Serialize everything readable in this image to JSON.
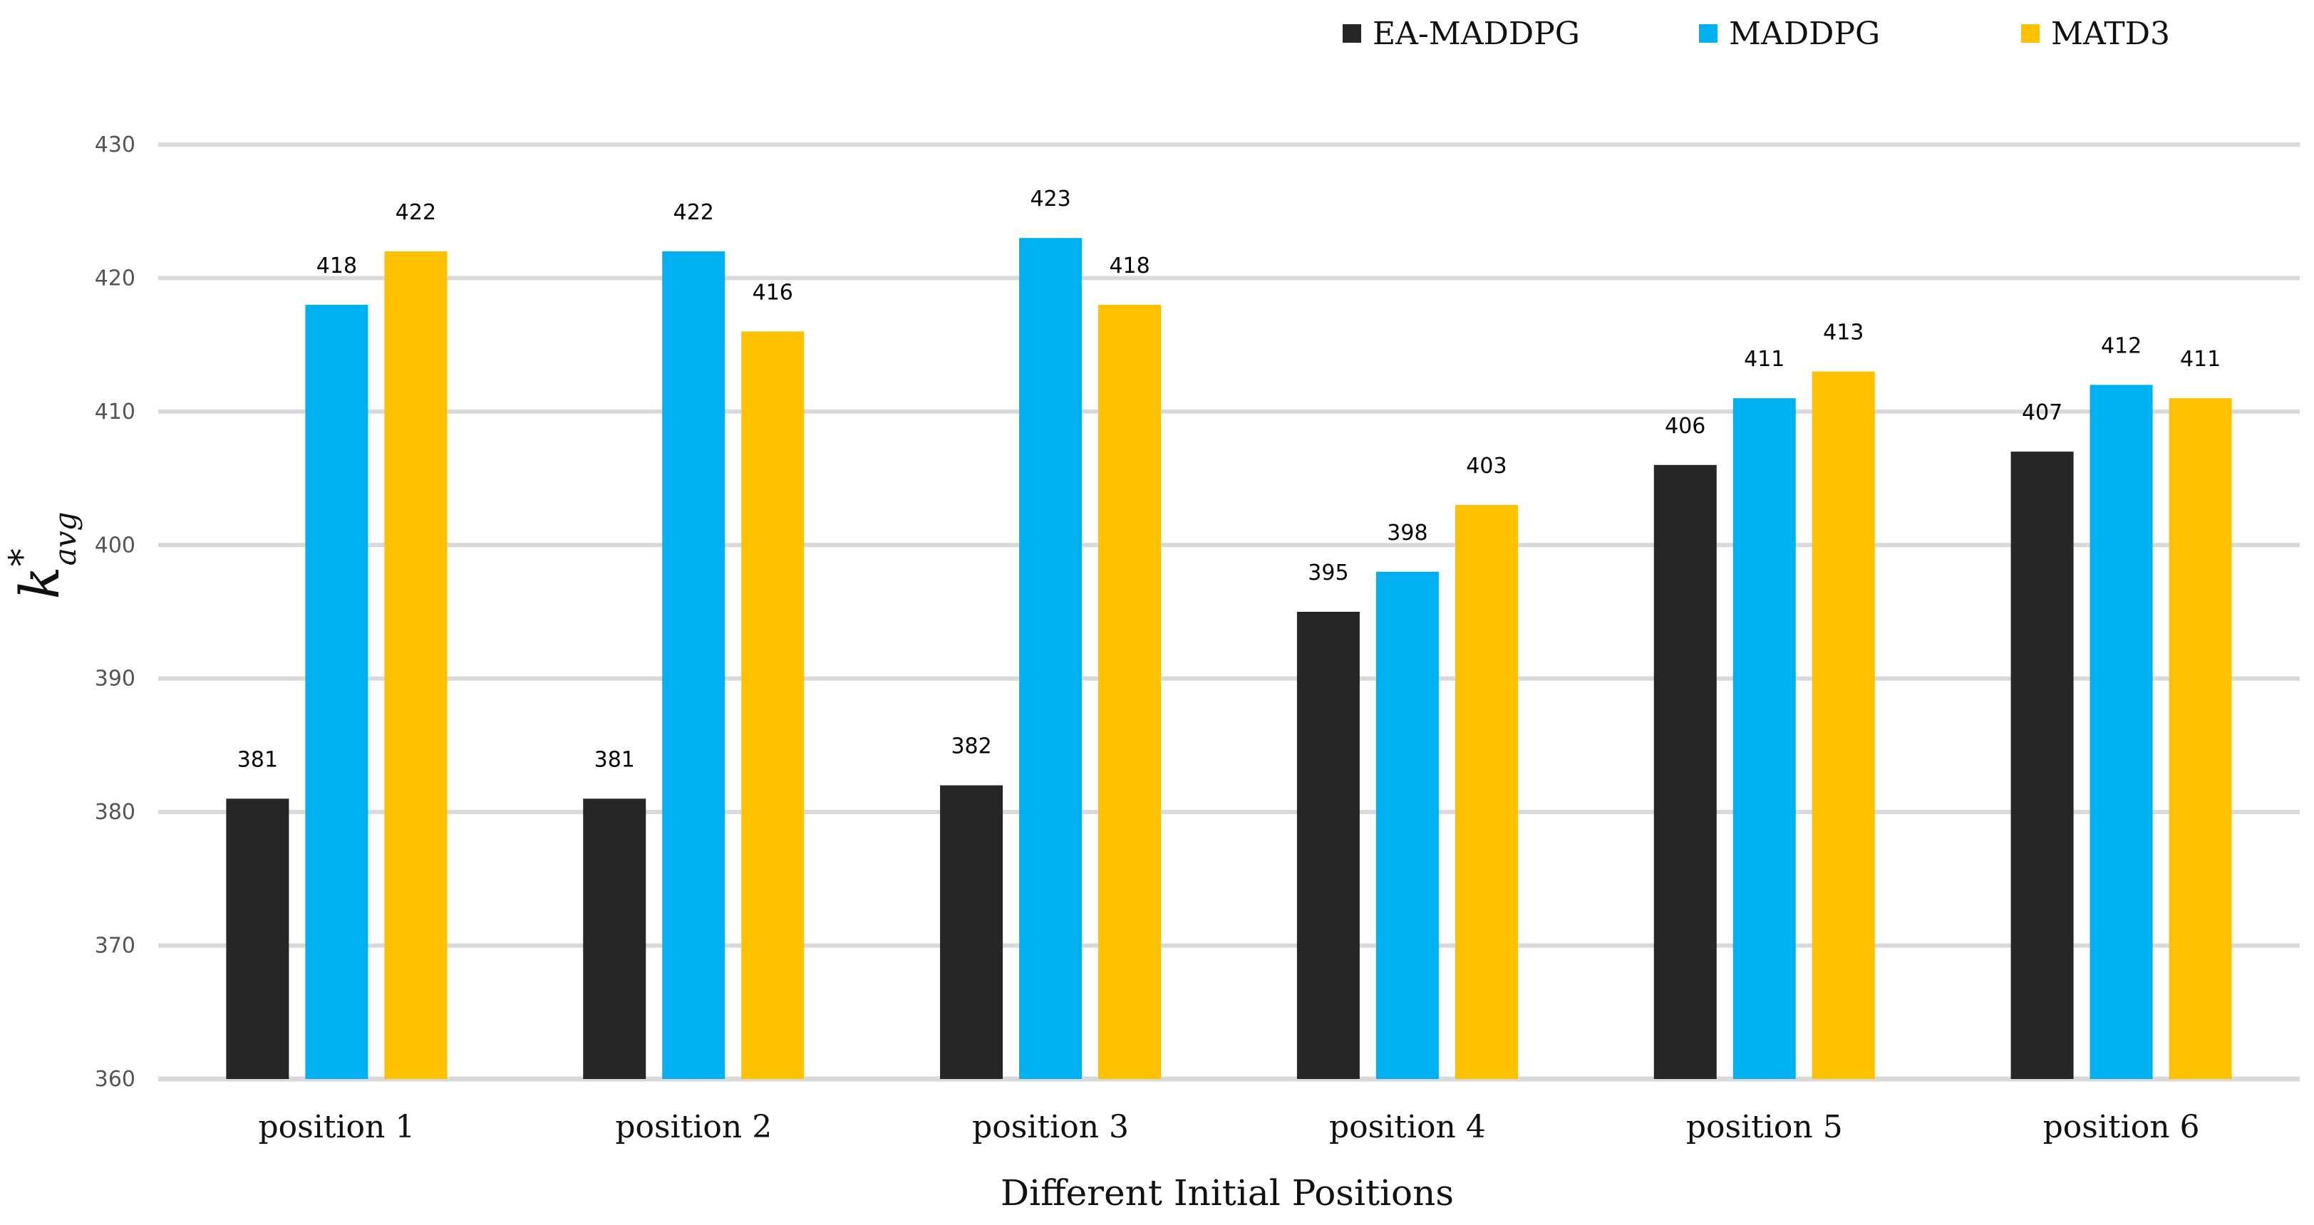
{
  "chart_data": {
    "type": "bar",
    "title": "",
    "xlabel": "Different Initial Positions",
    "ylabel": {
      "base": "k",
      "sup": "*",
      "sub": "avg"
    },
    "categories": [
      "position 1",
      "position 2",
      "position 3",
      "position 4",
      "position 5",
      "position 6"
    ],
    "series": [
      {
        "name": "EA-MADDPG",
        "color": "#262626",
        "values": [
          381,
          381,
          382,
          395,
          406,
          407
        ]
      },
      {
        "name": "MADDPG",
        "color": "#00B0F0",
        "values": [
          418,
          422,
          423,
          398,
          411,
          412
        ]
      },
      {
        "name": "MATD3",
        "color": "#FFC000",
        "values": [
          422,
          416,
          418,
          403,
          413,
          411
        ]
      }
    ],
    "ylim": [
      360,
      430
    ],
    "yticks": [
      360,
      370,
      380,
      390,
      400,
      410,
      420,
      430
    ],
    "grid": true,
    "gridColor": "#D9D9D9",
    "legend": "top-right"
  }
}
